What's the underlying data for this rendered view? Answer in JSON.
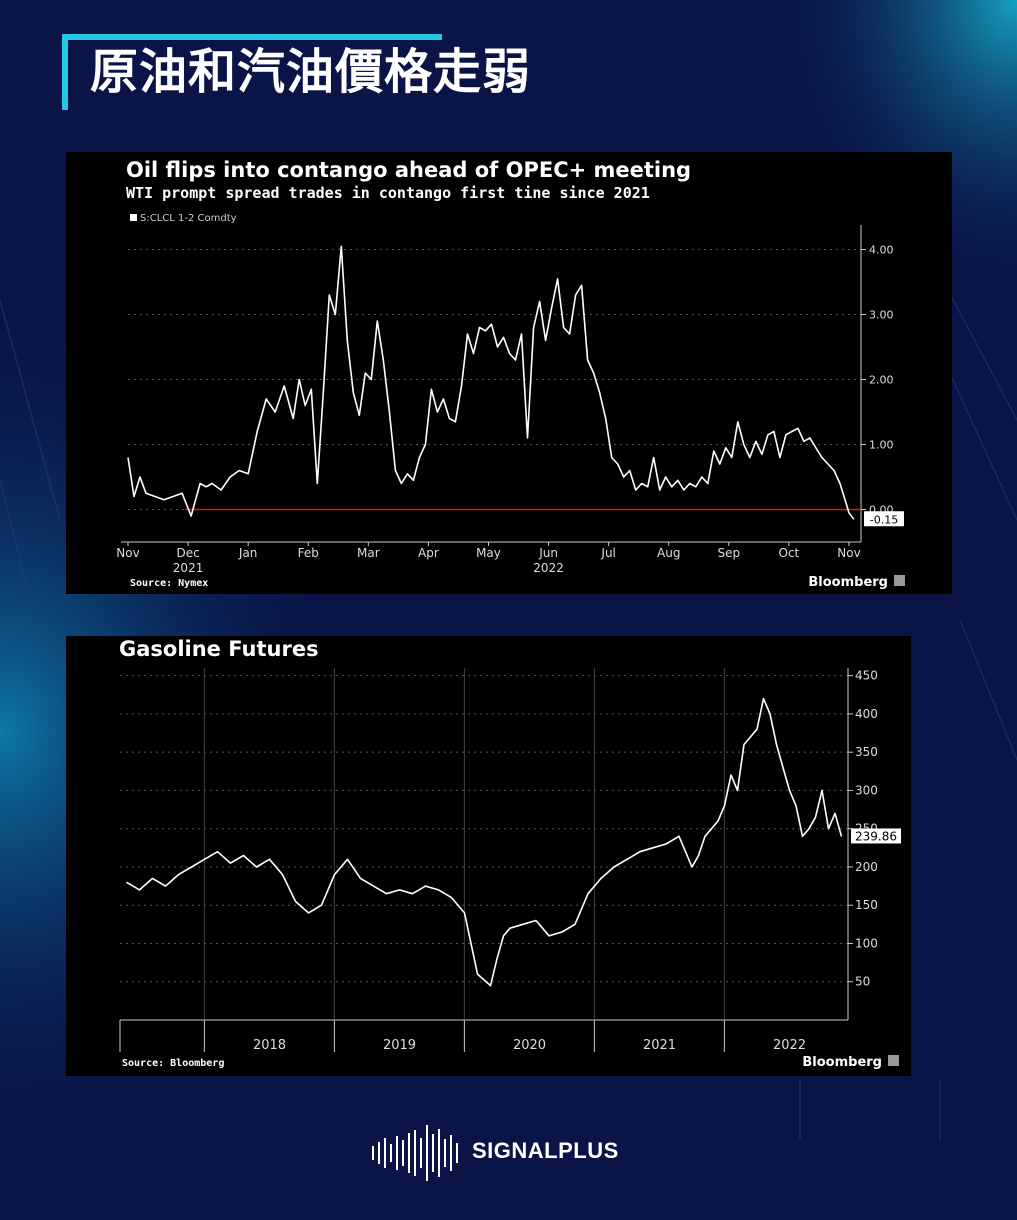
{
  "headline": "原油和汽油價格走弱",
  "brand": {
    "name": "SIGNALPLUS"
  },
  "colors": {
    "background": "#0a1447",
    "accent": "#22c9e3",
    "zero_line": "#d11a1a",
    "line": "#ffffff"
  },
  "chart_data": [
    {
      "type": "line",
      "title": "Oil flips into contango ahead of OPEC+ meeting",
      "subtitle": "WTI prompt spread trades in contango first tine since 2021",
      "legend": "S:CLCL 1-2 Comdty",
      "legend_position": "top-left",
      "source": "Source: Nymex",
      "publisher": "Bloomberg",
      "x_tick_labels": [
        "Nov",
        "Dec",
        "Jan",
        "Feb",
        "Mar",
        "Apr",
        "May",
        "Jun",
        "Jul",
        "Aug",
        "Sep",
        "Oct",
        "Nov"
      ],
      "x_year_labels": [
        {
          "label": "2021",
          "at_tick": 1
        },
        {
          "label": "2022",
          "at_tick": 7
        }
      ],
      "y_ticks": [
        "0.00",
        "1.00",
        "2.00",
        "3.00",
        "4.00"
      ],
      "ylim": [
        -0.5,
        4.3
      ],
      "last_value_label": "-0.15",
      "reference_line": 0,
      "grid": true,
      "x": [
        0,
        0.1,
        0.2,
        0.3,
        0.45,
        0.6,
        0.75,
        0.9,
        1.05,
        1.2,
        1.3,
        1.4,
        1.55,
        1.7,
        1.85,
        2.0,
        2.15,
        2.3,
        2.45,
        2.6,
        2.75,
        2.85,
        2.95,
        3.05,
        3.15,
        3.25,
        3.35,
        3.45,
        3.55,
        3.65,
        3.75,
        3.85,
        3.95,
        4.05,
        4.15,
        4.25,
        4.35,
        4.45,
        4.55,
        4.65,
        4.75,
        4.85,
        4.95,
        5.05,
        5.15,
        5.25,
        5.35,
        5.45,
        5.55,
        5.65,
        5.75,
        5.85,
        5.95,
        6.05,
        6.15,
        6.25,
        6.35,
        6.45,
        6.55,
        6.65,
        6.75,
        6.85,
        6.95,
        7.05,
        7.15,
        7.25,
        7.35,
        7.45,
        7.55,
        7.65,
        7.75,
        7.85,
        7.95,
        8.05,
        8.15,
        8.25,
        8.35,
        8.45,
        8.55,
        8.65,
        8.75,
        8.85,
        8.95,
        9.05,
        9.15,
        9.25,
        9.35,
        9.45,
        9.55,
        9.65,
        9.75,
        9.85,
        9.95,
        10.05,
        10.15,
        10.25,
        10.35,
        10.45,
        10.55,
        10.65,
        10.75,
        10.85,
        10.95,
        11.05,
        11.15,
        11.25,
        11.35,
        11.45,
        11.55,
        11.65,
        11.75,
        11.85,
        11.95,
        12.0,
        12.08
      ],
      "values": [
        0.8,
        0.2,
        0.5,
        0.25,
        0.2,
        0.15,
        0.2,
        0.25,
        -0.1,
        0.4,
        0.35,
        0.4,
        0.3,
        0.5,
        0.6,
        0.55,
        1.2,
        1.7,
        1.5,
        1.9,
        1.4,
        2.0,
        1.6,
        1.85,
        0.4,
        1.8,
        3.3,
        3.0,
        4.05,
        2.6,
        1.8,
        1.45,
        2.1,
        2.0,
        2.9,
        2.3,
        1.5,
        0.6,
        0.4,
        0.55,
        0.45,
        0.8,
        1.0,
        1.85,
        1.5,
        1.7,
        1.4,
        1.35,
        1.9,
        2.7,
        2.4,
        2.8,
        2.75,
        2.85,
        2.5,
        2.65,
        2.4,
        2.3,
        2.7,
        1.1,
        2.8,
        3.2,
        2.6,
        3.1,
        3.55,
        2.8,
        2.7,
        3.3,
        3.45,
        2.3,
        2.1,
        1.8,
        1.4,
        0.8,
        0.7,
        0.5,
        0.6,
        0.3,
        0.4,
        0.35,
        0.8,
        0.3,
        0.5,
        0.35,
        0.45,
        0.3,
        0.4,
        0.35,
        0.5,
        0.4,
        0.9,
        0.7,
        0.95,
        0.8,
        1.35,
        1.0,
        0.8,
        1.05,
        0.85,
        1.15,
        1.2,
        0.8,
        1.15,
        1.2,
        1.25,
        1.05,
        1.1,
        0.95,
        0.8,
        0.7,
        0.6,
        0.4,
        0.1,
        -0.05,
        -0.15
      ]
    },
    {
      "type": "line",
      "title": "Gasoline Futures",
      "source": "Source: Bloomberg",
      "publisher": "Bloomberg",
      "x_tick_labels": [
        "2018",
        "2019",
        "2020",
        "2021",
        "2022"
      ],
      "y_ticks": [
        "50",
        "100",
        "150",
        "200",
        "250",
        "300",
        "350",
        "400",
        "450"
      ],
      "ylim": [
        0,
        460
      ],
      "last_value_label": "239.86",
      "grid": true,
      "x": [
        2017.4,
        2017.5,
        2017.6,
        2017.7,
        2017.8,
        2017.9,
        2018.0,
        2018.1,
        2018.2,
        2018.3,
        2018.4,
        2018.5,
        2018.6,
        2018.7,
        2018.8,
        2018.9,
        2019.0,
        2019.1,
        2019.2,
        2019.3,
        2019.4,
        2019.5,
        2019.6,
        2019.7,
        2019.8,
        2019.9,
        2020.0,
        2020.1,
        2020.2,
        2020.25,
        2020.3,
        2020.35,
        2020.45,
        2020.55,
        2020.65,
        2020.75,
        2020.85,
        2020.95,
        2021.05,
        2021.15,
        2021.25,
        2021.35,
        2021.45,
        2021.55,
        2021.65,
        2021.75,
        2021.8,
        2021.85,
        2021.95,
        2022.0,
        2022.05,
        2022.1,
        2022.15,
        2022.2,
        2022.25,
        2022.3,
        2022.35,
        2022.4,
        2022.45,
        2022.5,
        2022.55,
        2022.6,
        2022.65,
        2022.7,
        2022.75,
        2022.8,
        2022.85,
        2022.9
      ],
      "values": [
        180,
        170,
        185,
        175,
        190,
        200,
        210,
        220,
        205,
        215,
        200,
        210,
        190,
        155,
        140,
        150,
        190,
        210,
        185,
        175,
        165,
        170,
        165,
        175,
        170,
        160,
        140,
        60,
        45,
        80,
        110,
        120,
        125,
        130,
        110,
        115,
        125,
        165,
        185,
        200,
        210,
        220,
        225,
        230,
        240,
        200,
        215,
        240,
        260,
        280,
        320,
        300,
        360,
        370,
        380,
        420,
        400,
        360,
        330,
        300,
        280,
        240,
        250,
        265,
        300,
        250,
        270,
        239.86
      ]
    }
  ]
}
